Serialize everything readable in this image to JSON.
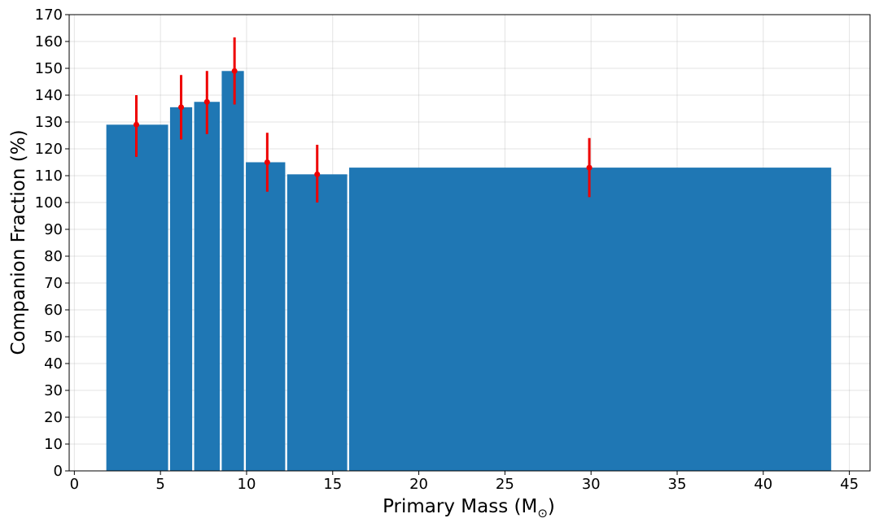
{
  "chart_data": {
    "type": "bar",
    "title": "",
    "xlabel": "Primary Mass (M",
    "xlabel_subscript": "⊙",
    "xlabel_suffix": ")",
    "ylabel": "Companion Fraction (%)",
    "xlim": [
      -0.3,
      46.2
    ],
    "ylim": [
      0,
      170
    ],
    "xticks": [
      0,
      5,
      10,
      15,
      20,
      25,
      30,
      35,
      40,
      45
    ],
    "yticks": [
      0,
      10,
      20,
      30,
      40,
      50,
      60,
      70,
      80,
      90,
      100,
      110,
      120,
      130,
      140,
      150,
      160,
      170
    ],
    "grid": true,
    "bar_color": "#1f77b4",
    "errorbar_color": "#ee0000",
    "bins": [
      {
        "x0": 1.8,
        "x1": 5.5,
        "value": 129
      },
      {
        "x0": 5.5,
        "x1": 6.9,
        "value": 135.5
      },
      {
        "x0": 6.9,
        "x1": 8.5,
        "value": 137.5
      },
      {
        "x0": 8.5,
        "x1": 9.9,
        "value": 149
      },
      {
        "x0": 9.9,
        "x1": 12.3,
        "value": 115
      },
      {
        "x0": 12.3,
        "x1": 15.9,
        "value": 110.5
      },
      {
        "x0": 15.9,
        "x1": 44.0,
        "value": 113
      }
    ],
    "points": [
      {
        "x": 3.6,
        "y": 129,
        "lower": 117,
        "upper": 140
      },
      {
        "x": 6.2,
        "y": 135.5,
        "lower": 123.5,
        "upper": 147.5
      },
      {
        "x": 7.7,
        "y": 137.5,
        "lower": 125.5,
        "upper": 149
      },
      {
        "x": 9.3,
        "y": 149,
        "lower": 136.5,
        "upper": 161.5
      },
      {
        "x": 11.2,
        "y": 115,
        "lower": 104,
        "upper": 126
      },
      {
        "x": 14.1,
        "y": 110.5,
        "lower": 100,
        "upper": 121.5
      },
      {
        "x": 29.9,
        "y": 113,
        "lower": 102,
        "upper": 124
      }
    ]
  }
}
